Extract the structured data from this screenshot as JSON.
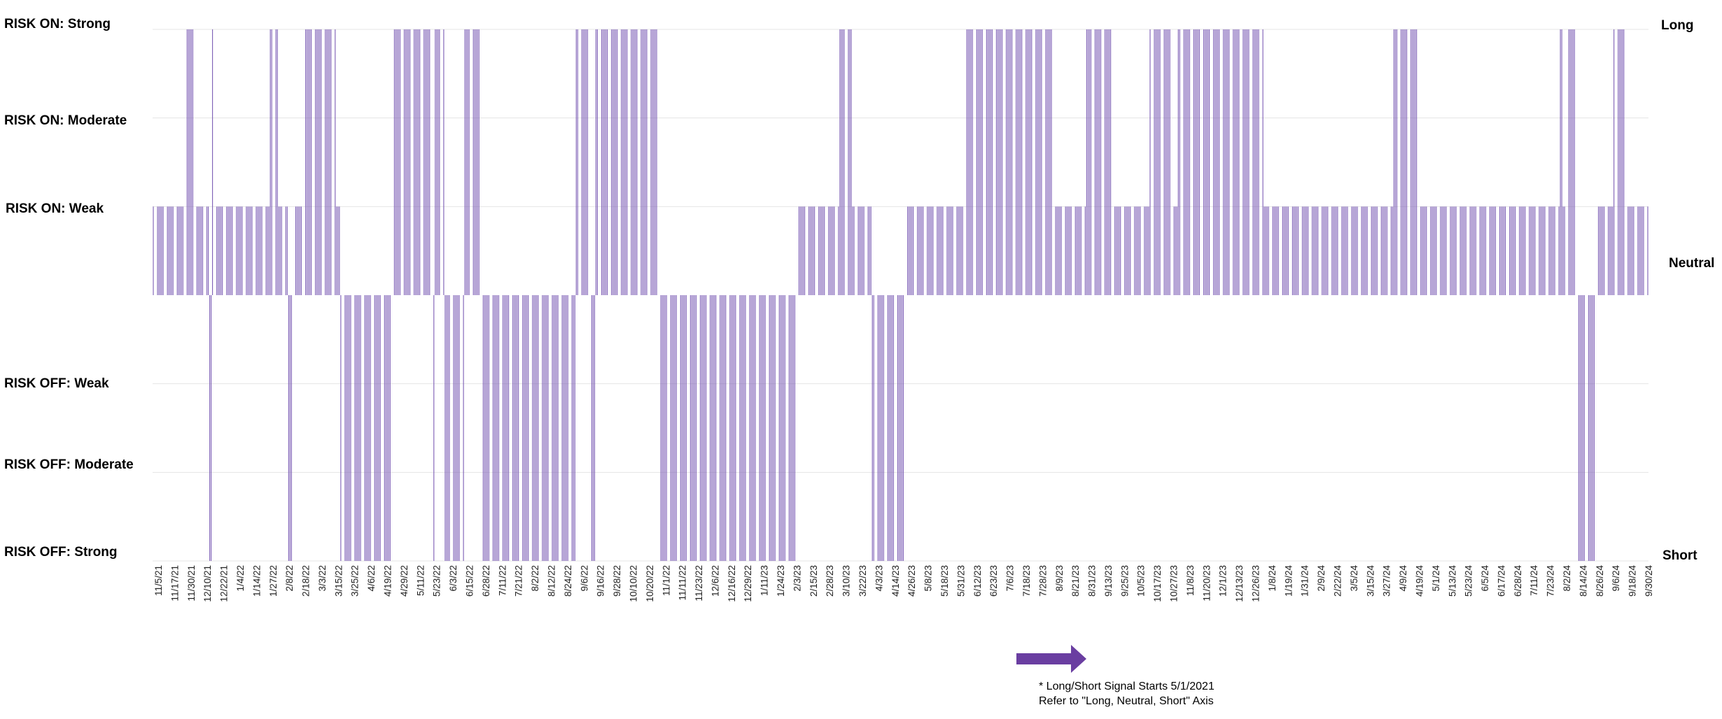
{
  "chart_data": {
    "type": "bar",
    "title": "",
    "xlabel": "",
    "ylabel": "",
    "color": "#7b5cb5",
    "arrow_color": "#6a3ea1",
    "grid": true,
    "y_levels": [
      "RISK OFF: Strong",
      "RISK OFF: Moderate",
      "RISK OFF: Weak",
      "RISK ON: Weak",
      "RISK ON: Moderate",
      "RISK ON: Strong"
    ],
    "right_axis_labels": [
      "Long",
      "Neutral",
      "Short"
    ],
    "ylim": [
      -3,
      3
    ],
    "x_tick_labels": [
      "11/5/21",
      "11/17/21",
      "11/30/21",
      "12/10/21",
      "12/22/21",
      "1/4/22",
      "1/14/22",
      "1/27/22",
      "2/8/22",
      "2/18/22",
      "3/3/22",
      "3/15/22",
      "3/25/22",
      "4/6/22",
      "4/19/22",
      "4/29/22",
      "5/11/22",
      "5/23/22",
      "6/3/22",
      "6/15/22",
      "6/28/22",
      "7/11/22",
      "7/21/22",
      "8/2/22",
      "8/12/22",
      "8/24/22",
      "9/6/22",
      "9/16/22",
      "9/28/22",
      "10/10/22",
      "10/20/22",
      "11/1/22",
      "11/11/22",
      "11/23/22",
      "12/6/22",
      "12/16/22",
      "12/29/22",
      "1/11/23",
      "1/24/23",
      "2/3/23",
      "2/15/23",
      "2/28/23",
      "3/10/23",
      "3/22/23",
      "4/3/23",
      "4/14/23",
      "4/26/23",
      "5/8/23",
      "5/18/23",
      "5/31/23",
      "6/12/23",
      "6/23/23",
      "7/6/23",
      "7/18/23",
      "7/28/23",
      "8/9/23",
      "8/21/23",
      "8/31/23",
      "9/13/23",
      "9/25/23",
      "10/5/23",
      "10/17/23",
      "10/27/23",
      "11/8/23",
      "11/20/23",
      "12/1/23",
      "12/13/23",
      "12/26/23",
      "1/8/24",
      "1/19/24",
      "1/31/24",
      "2/9/24",
      "2/22/24",
      "3/5/24",
      "3/15/24",
      "3/27/24",
      "4/9/24",
      "4/19/24",
      "5/1/24",
      "5/13/24",
      "5/23/24",
      "6/5/24",
      "6/17/24",
      "6/28/24",
      "7/11/24",
      "7/23/24",
      "8/2/24",
      "8/14/24",
      "8/26/24",
      "9/6/24",
      "9/18/24",
      "9/30/24"
    ],
    "segments": [
      {
        "from": "11/5/21",
        "to": "11/28/21",
        "value": 1
      },
      {
        "from": "11/29/21",
        "to": "12/5/21",
        "value": 3
      },
      {
        "from": "12/6/21",
        "to": "12/14/21",
        "value": 1
      },
      {
        "from": "12/15/21",
        "to": "12/16/21",
        "value": -3
      },
      {
        "from": "12/17/21",
        "to": "12/18/21",
        "value": 3
      },
      {
        "from": "12/19/21",
        "to": "1/26/22",
        "value": 1
      },
      {
        "from": "1/27/22",
        "to": "2/1/22",
        "value": 3
      },
      {
        "from": "2/2/22",
        "to": "2/8/22",
        "value": 1
      },
      {
        "from": "2/9/22",
        "to": "2/11/22",
        "value": -3
      },
      {
        "from": "2/12/22",
        "to": "2/18/22",
        "value": 1
      },
      {
        "from": "2/19/22",
        "to": "3/14/22",
        "value": 3
      },
      {
        "from": "3/15/22",
        "to": "3/17/22",
        "value": 1
      },
      {
        "from": "3/18/22",
        "to": "4/23/22",
        "value": -3
      },
      {
        "from": "4/24/22",
        "to": "5/21/22",
        "value": 3
      },
      {
        "from": "5/22/22",
        "to": "5/23/22",
        "value": -3
      },
      {
        "from": "5/24/22",
        "to": "5/30/22",
        "value": 3
      },
      {
        "from": "5/31/22",
        "to": "6/13/22",
        "value": -3
      },
      {
        "from": "6/14/22",
        "to": "6/26/22",
        "value": 3
      },
      {
        "from": "6/27/22",
        "to": "8/31/22",
        "value": -3
      },
      {
        "from": "9/1/22",
        "to": "9/10/22",
        "value": 3
      },
      {
        "from": "9/11/22",
        "to": "9/14/22",
        "value": -3
      },
      {
        "from": "9/15/22",
        "to": "10/30/22",
        "value": 3
      },
      {
        "from": "10/31/22",
        "to": "2/5/23",
        "value": -3
      },
      {
        "from": "2/6/23",
        "to": "3/6/23",
        "value": 1
      },
      {
        "from": "3/7/23",
        "to": "3/15/23",
        "value": 3
      },
      {
        "from": "3/16/23",
        "to": "3/29/23",
        "value": 1
      },
      {
        "from": "3/30/23",
        "to": "4/21/23",
        "value": -3
      },
      {
        "from": "4/22/23",
        "to": "6/4/23",
        "value": 1
      },
      {
        "from": "6/5/23",
        "to": "8/5/23",
        "value": 3
      },
      {
        "from": "8/6/23",
        "to": "8/28/23",
        "value": 1
      },
      {
        "from": "8/29/23",
        "to": "9/17/23",
        "value": 3
      },
      {
        "from": "9/18/23",
        "to": "10/12/23",
        "value": 1
      },
      {
        "from": "10/13/23",
        "to": "10/27/23",
        "value": 3
      },
      {
        "from": "10/28/23",
        "to": "11/1/23",
        "value": 1
      },
      {
        "from": "11/2/23",
        "to": "1/1/24",
        "value": 3
      },
      {
        "from": "1/2/24",
        "to": "4/2/24",
        "value": 1
      },
      {
        "from": "4/3/24",
        "to": "4/19/24",
        "value": 3
      },
      {
        "from": "4/20/24",
        "to": "7/29/24",
        "value": 1
      },
      {
        "from": "7/30/24",
        "to": "7/31/24",
        "value": 3
      },
      {
        "from": "8/1/24",
        "to": "8/4/24",
        "value": 1
      },
      {
        "from": "8/5/24",
        "to": "8/11/24",
        "value": 3
      },
      {
        "from": "8/12/24",
        "to": "8/23/24",
        "value": -3
      },
      {
        "from": "8/24/24",
        "to": "9/5/24",
        "value": 1
      },
      {
        "from": "9/6/24",
        "to": "9/13/24",
        "value": 3
      },
      {
        "from": "9/14/24",
        "to": "10/1/24",
        "value": 1
      }
    ]
  },
  "notes": {
    "line1": "* Long/Short Signal Starts 5/1/2021",
    "line2": "Refer to \"Long, Neutral, Short\" Axis"
  }
}
